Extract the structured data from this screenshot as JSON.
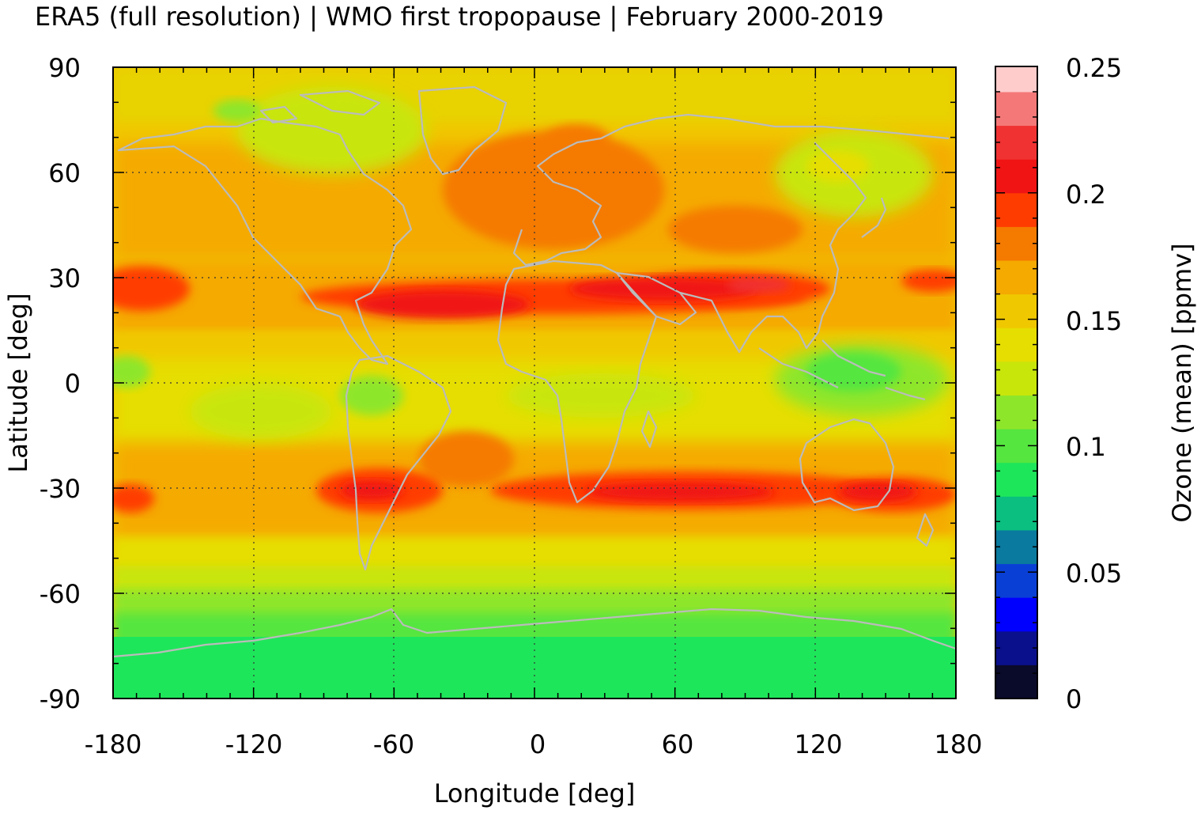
{
  "chart_data": {
    "type": "heatmap",
    "title": "ERA5 (full resolution) | WMO first tropopause | February 2000-2019",
    "xlabel": "Longitude [deg]",
    "ylabel": "Latitude [deg]",
    "colorbar_label": "Ozone (mean) [ppmv]",
    "xlim": [
      -180,
      180
    ],
    "ylim": [
      -90,
      90
    ],
    "x_ticks": [
      -180,
      -120,
      -60,
      0,
      60,
      120,
      180
    ],
    "y_ticks": [
      90,
      60,
      30,
      0,
      -30,
      -60,
      -90
    ],
    "colorbar": {
      "range": [
        0,
        0.25
      ],
      "ticks": [
        "0.25",
        "0.2",
        "0.15",
        "0.1",
        "0.05",
        "0"
      ],
      "colors_bottom_to_top": [
        "#0a0a2a",
        "#0a0f8c",
        "#0000ff",
        "#0a3fd6",
        "#0a7a9e",
        "#0abf80",
        "#1ee65a",
        "#55e640",
        "#8ee62a",
        "#c8e60a",
        "#e6de00",
        "#f0c800",
        "#f5aa00",
        "#f57a00",
        "#ff3c00",
        "#f01414",
        "#f03232",
        "#f57878",
        "#ffcccc"
      ]
    },
    "grid": true,
    "gridline_style": "dotted",
    "coastlines_color": "#bbbbbb",
    "field_description_bands": [
      {
        "lat_range": [
          75,
          90
        ],
        "ozone_approx": 0.15
      },
      {
        "lat_range": [
          40,
          75
        ],
        "ozone_approx": 0.16
      },
      {
        "lat_range": [
          20,
          35
        ],
        "ozone_approx": 0.2
      },
      {
        "lat_range": [
          -15,
          15
        ],
        "ozone_approx": 0.13
      },
      {
        "lat_range": [
          -40,
          -25
        ],
        "ozone_approx": 0.2
      },
      {
        "lat_range": [
          -60,
          -40
        ],
        "ozone_approx": 0.14
      },
      {
        "lat_range": [
          -90,
          -60
        ],
        "ozone_approx": 0.1
      }
    ]
  }
}
